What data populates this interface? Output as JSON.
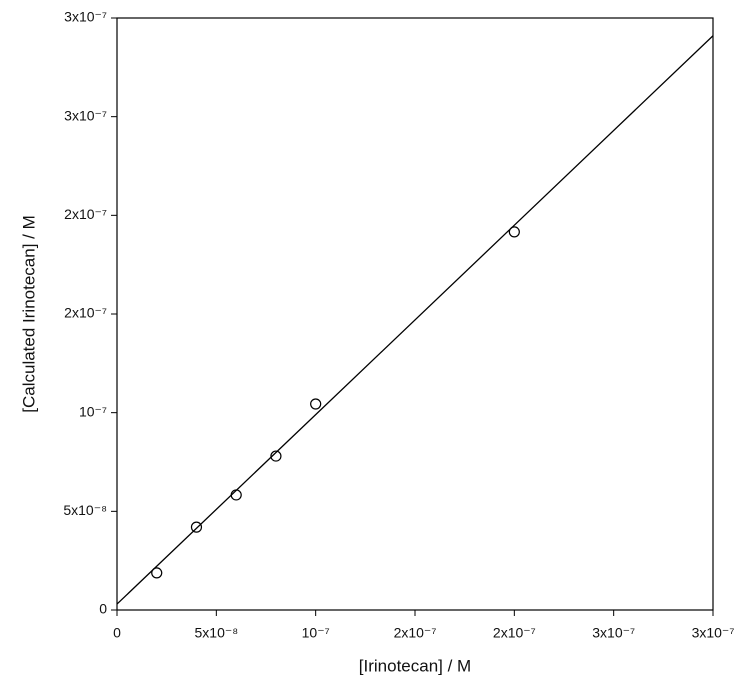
{
  "chart_data": {
    "type": "scatter",
    "x_label": "[Irinotecan] / M",
    "y_label": "[Calculated Irinotecan] / M",
    "series": [
      {
        "color": "#000000",
        "x": [
          2e-08,
          4e-08,
          6e-08,
          8e-08,
          1e-07,
          2e-07
        ],
        "values": [
          1.88e-08,
          4.2e-08,
          5.83e-08,
          7.8e-08,
          1.044e-07,
          1.916e-07
        ]
      }
    ],
    "fit_line": {
      "color": "#000000",
      "x": [
        0,
        3e-07
      ],
      "values": [
        3e-09,
        2.91e-07
      ]
    },
    "xlim": [
      0,
      3e-07
    ],
    "ylim": [
      0,
      3e-07
    ],
    "xticks": [
      0,
      {
        "value": 5e-08,
        "label": "5x10⁻⁸"
      },
      {
        "value": 1e-07,
        "label": "10⁻⁷"
      },
      {
        "value": 1.5e-07,
        "label": "2x10⁻⁷"
      },
      {
        "value": 2e-07,
        "label": "2x10⁻⁷"
      },
      {
        "value": 2.5e-07,
        "label": "3x10⁻⁷"
      },
      {
        "value": 3e-07,
        "label": "3x10⁻⁷"
      }
    ],
    "yticks": [
      0,
      {
        "value": 5e-08,
        "label": "5x10⁻⁸"
      },
      {
        "value": 1e-07,
        "label": "10⁻⁷"
      },
      {
        "value": 1.5e-07,
        "label": "2x10⁻⁷"
      },
      {
        "value": 2e-07,
        "label": "2x10⁻⁷"
      },
      {
        "value": 2.5e-07,
        "label": "3x10⁻⁷"
      },
      {
        "value": 3e-07,
        "label": "3x10⁻⁷"
      }
    ],
    "grid": false
  }
}
